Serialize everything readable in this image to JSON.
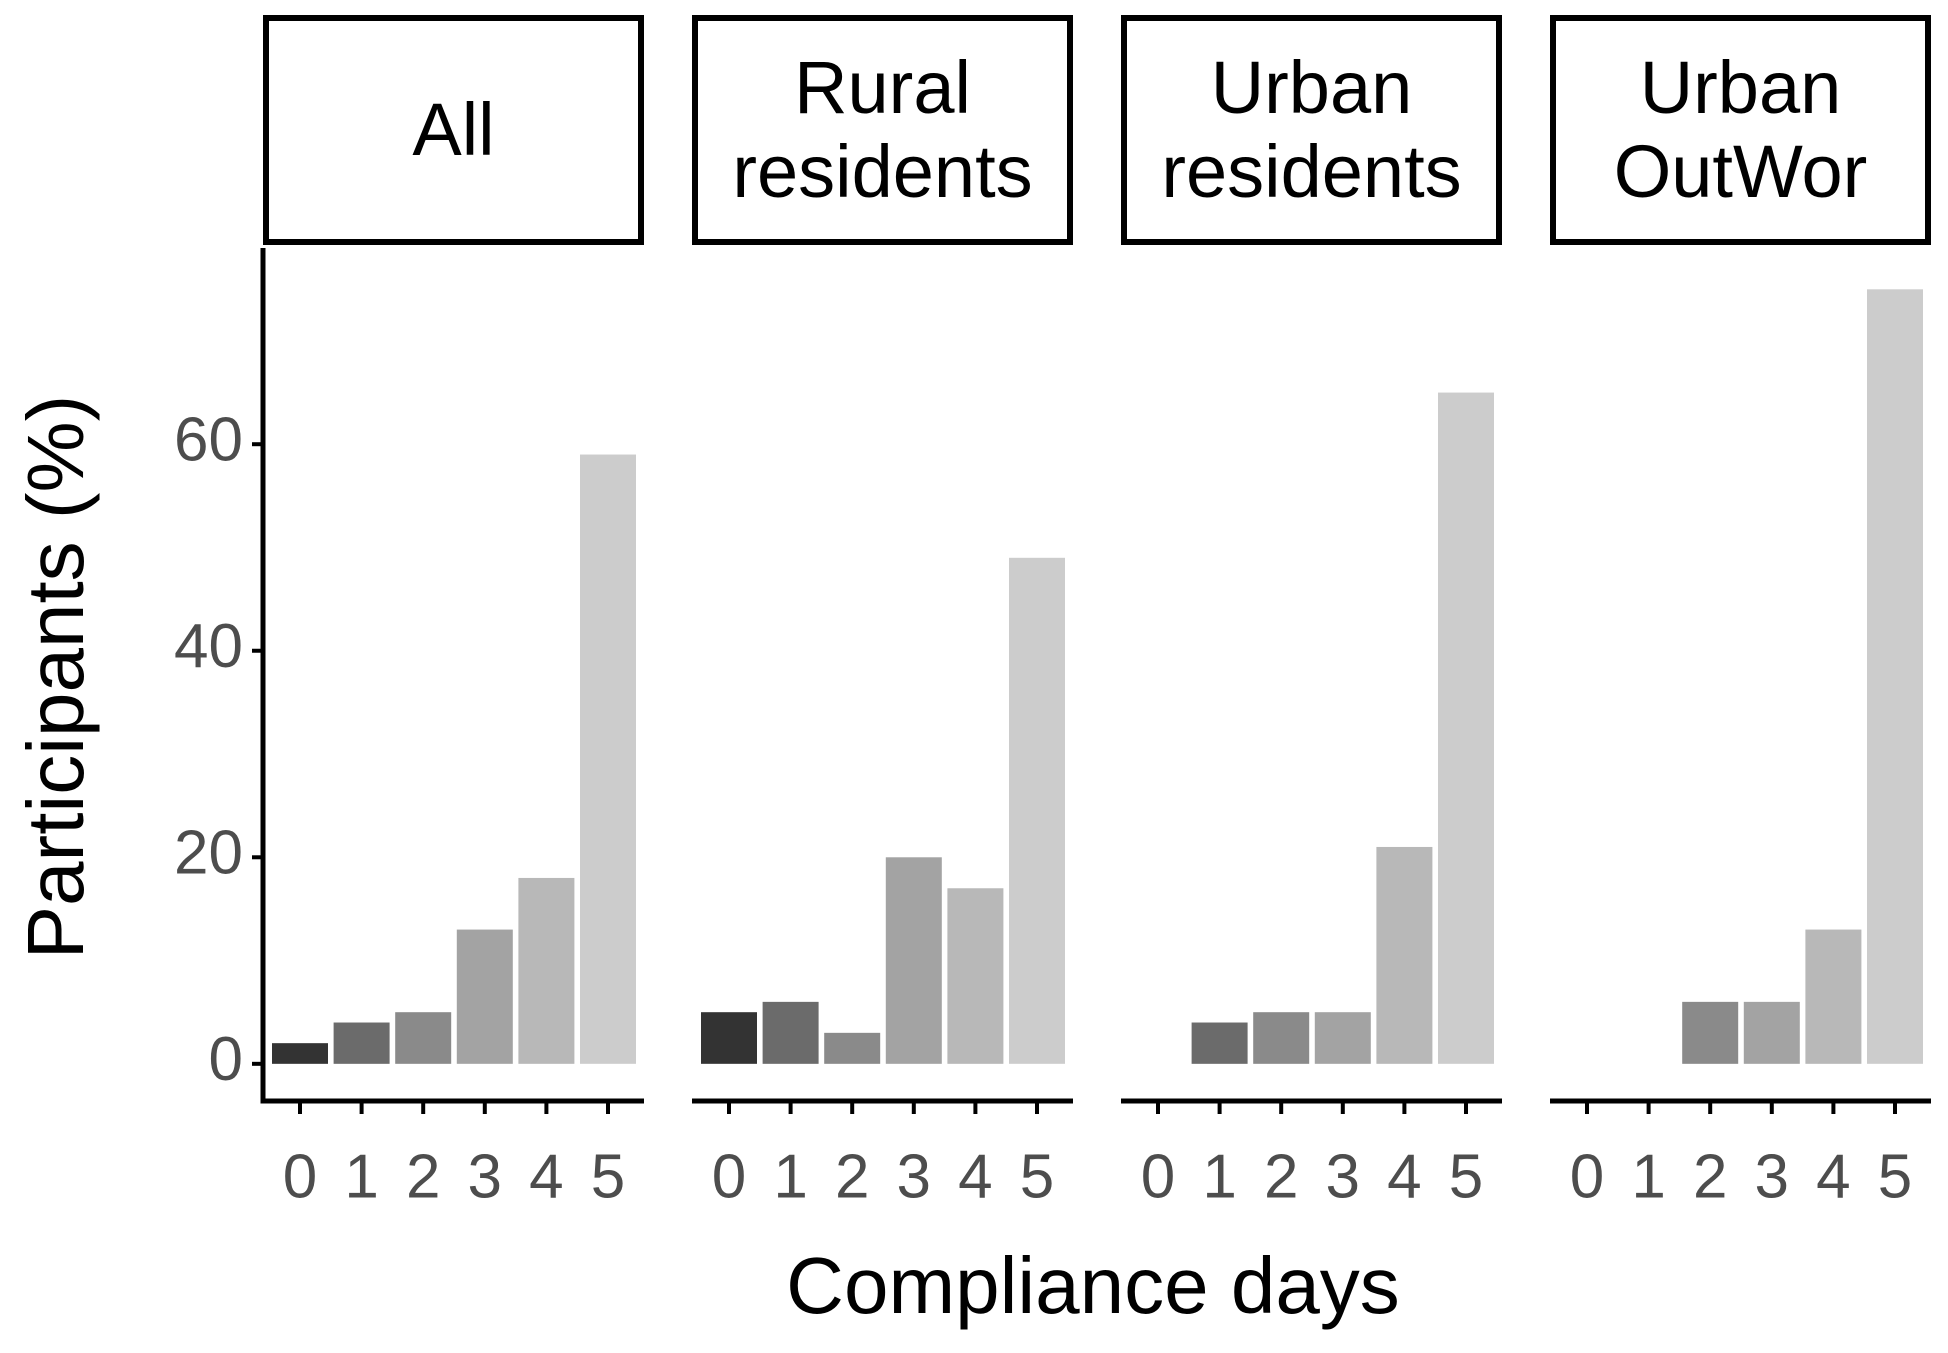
{
  "chart_data": {
    "type": "bar",
    "xlabel": "Compliance days",
    "ylabel": "Participants (%)",
    "categories": [
      "0",
      "1",
      "2",
      "3",
      "4",
      "5"
    ],
    "colors": [
      "#333333",
      "#6b6b6b",
      "#8a8a8a",
      "#a3a3a3",
      "#b8b8b8",
      "#cccccc"
    ],
    "ylim": [
      -3.6,
      79
    ],
    "yticks": [
      0,
      20,
      40,
      60
    ],
    "facets": [
      {
        "title": "All",
        "values": [
          2,
          4,
          5,
          13,
          18,
          59
        ]
      },
      {
        "title": "Rural residents",
        "values": [
          5,
          6,
          3,
          20,
          17,
          49
        ]
      },
      {
        "title": "Urban residents",
        "values": [
          0,
          4,
          5,
          5,
          21,
          65
        ]
      },
      {
        "title": "Urban OutWor",
        "values": [
          0,
          0,
          6,
          6,
          13,
          75
        ]
      }
    ]
  }
}
